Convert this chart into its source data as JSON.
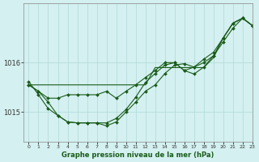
{
  "title": "Graphe pression niveau de la mer (hPa)",
  "background_color": "#d4f0f0",
  "grid_color": "#b0d8d8",
  "line_color": "#1a5c1a",
  "marker_color": "#1a5c1a",
  "xlim": [
    -0.5,
    23
  ],
  "ylim": [
    1014.4,
    1017.2
  ],
  "yticks": [
    1015,
    1016
  ],
  "xticks": [
    0,
    1,
    2,
    3,
    4,
    5,
    6,
    7,
    8,
    9,
    10,
    11,
    12,
    13,
    14,
    15,
    16,
    17,
    18,
    19,
    20,
    21,
    22,
    23
  ],
  "series": [
    {
      "type": "straight",
      "data": [
        1015.55,
        1015.55,
        1015.55,
        1015.55,
        1015.55,
        1015.55,
        1015.55,
        1015.55,
        1015.55,
        1015.55,
        1015.55,
        1015.55,
        1015.55,
        1015.9,
        1015.9,
        1015.9,
        1015.9,
        1015.9,
        1015.9,
        1016.1,
        1016.5,
        1016.8,
        1016.9,
        1016.75
      ],
      "markers": false
    },
    {
      "type": "line1",
      "data": [
        1015.55,
        1015.42,
        1015.28,
        1015.28,
        1015.35,
        1015.35,
        1015.35,
        1015.35,
        1015.42,
        1015.28,
        1015.42,
        1015.55,
        1015.7,
        1015.84,
        1016.0,
        1016.0,
        1015.84,
        1015.91,
        1016.07,
        1016.21,
        1016.5,
        1016.8,
        1016.9,
        1016.75
      ],
      "markers": true
    },
    {
      "type": "line2",
      "data": [
        1015.55,
        1015.42,
        1015.2,
        1014.93,
        1014.8,
        1014.78,
        1014.78,
        1014.78,
        1014.78,
        1014.87,
        1015.05,
        1015.3,
        1015.6,
        1015.78,
        1015.95,
        1016.0,
        1015.84,
        1015.77,
        1015.91,
        1016.14,
        1016.5,
        1016.8,
        1016.9,
        1016.75
      ],
      "markers": true
    },
    {
      "type": "line3",
      "data": [
        1015.62,
        1015.35,
        1015.07,
        1014.93,
        1014.8,
        1014.78,
        1014.78,
        1014.78,
        1014.72,
        1014.8,
        1015.0,
        1015.2,
        1015.42,
        1015.55,
        1015.78,
        1015.95,
        1015.98,
        1015.91,
        1016.0,
        1016.14,
        1016.42,
        1016.7,
        1016.9,
        1016.75
      ],
      "markers": true
    }
  ]
}
